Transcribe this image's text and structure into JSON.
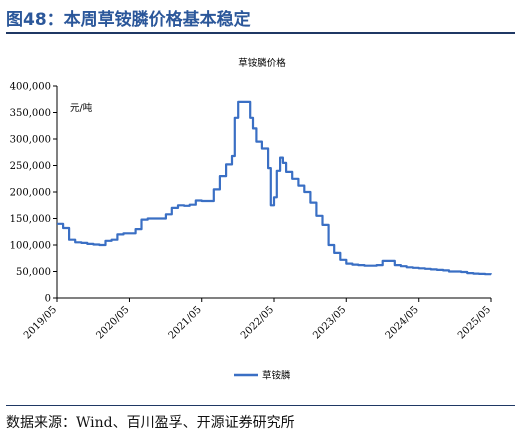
{
  "figure": {
    "title": "图48：本周草铵膦价格基本稳定",
    "source": "数据来源：Wind、百川盈孚、开源证券研究所"
  },
  "colors": {
    "line": "#3a6fc4",
    "title": "#2b579a",
    "rule": "#1f3864"
  },
  "chart_data": {
    "type": "line",
    "title": "草铵膦价格",
    "unit_label": "元/吨",
    "xlabel": "",
    "ylabel": "",
    "ylim": [
      0,
      400000
    ],
    "yticks": [
      0,
      50000,
      100000,
      150000,
      200000,
      250000,
      300000,
      350000,
      400000
    ],
    "ytick_labels": [
      "0",
      "50,000",
      "100,000",
      "150,000",
      "200,000",
      "250,000",
      "300,000",
      "350,000",
      "400,000"
    ],
    "xlim": [
      "2019-05",
      "2025-05"
    ],
    "xtick_labels": [
      "2019/05",
      "2020/05",
      "2021/05",
      "2022/05",
      "2023/05",
      "2024/05",
      "2025/05"
    ],
    "grid": false,
    "legend_position": "bottom",
    "series": [
      {
        "name": "草铵膦",
        "color": "#3a6fc4",
        "x": [
          "2019-05",
          "2019-06",
          "2019-07",
          "2019-08",
          "2019-09",
          "2019-10",
          "2019-11",
          "2019-12",
          "2020-01",
          "2020-02",
          "2020-03",
          "2020-04",
          "2020-05",
          "2020-06",
          "2020-07",
          "2020-08",
          "2020-09",
          "2020-10",
          "2020-11",
          "2020-12",
          "2021-01",
          "2021-02",
          "2021-03",
          "2021-04",
          "2021-05",
          "2021-06",
          "2021-07",
          "2021-08",
          "2021-09",
          "2021-10",
          "2021-10-15",
          "2021-11",
          "2021-12",
          "2022-01",
          "2022-01-15",
          "2022-02",
          "2022-03",
          "2022-04",
          "2022-04-15",
          "2022-05",
          "2022-05-15",
          "2022-06",
          "2022-06-15",
          "2022-07",
          "2022-08",
          "2022-09",
          "2022-10",
          "2022-11",
          "2022-12",
          "2023-01",
          "2023-02",
          "2023-03",
          "2023-04",
          "2023-05",
          "2023-06",
          "2023-07",
          "2023-08",
          "2023-09",
          "2023-10",
          "2023-11",
          "2023-12",
          "2024-01",
          "2024-02",
          "2024-03",
          "2024-04",
          "2024-05",
          "2024-06",
          "2024-07",
          "2024-08",
          "2024-09",
          "2024-10",
          "2024-11",
          "2024-12",
          "2025-01",
          "2025-02",
          "2025-03",
          "2025-04",
          "2025-05"
        ],
        "values": [
          140000,
          132000,
          110000,
          105000,
          104000,
          102000,
          101000,
          100000,
          108000,
          110000,
          120000,
          122000,
          122000,
          130000,
          148000,
          150000,
          150000,
          150000,
          158000,
          170000,
          175000,
          174000,
          176000,
          184000,
          183000,
          183000,
          205000,
          230000,
          252000,
          268000,
          340000,
          370000,
          370000,
          340000,
          320000,
          295000,
          282000,
          245000,
          175000,
          190000,
          240000,
          265000,
          255000,
          238000,
          225000,
          212000,
          200000,
          180000,
          155000,
          138000,
          100000,
          85000,
          72000,
          65000,
          63000,
          62000,
          61000,
          61000,
          62000,
          70000,
          70000,
          62000,
          60000,
          58000,
          57000,
          56000,
          55000,
          54000,
          53000,
          52000,
          50000,
          50000,
          49000,
          47000,
          46000,
          45500,
          45000,
          44500
        ]
      }
    ]
  }
}
